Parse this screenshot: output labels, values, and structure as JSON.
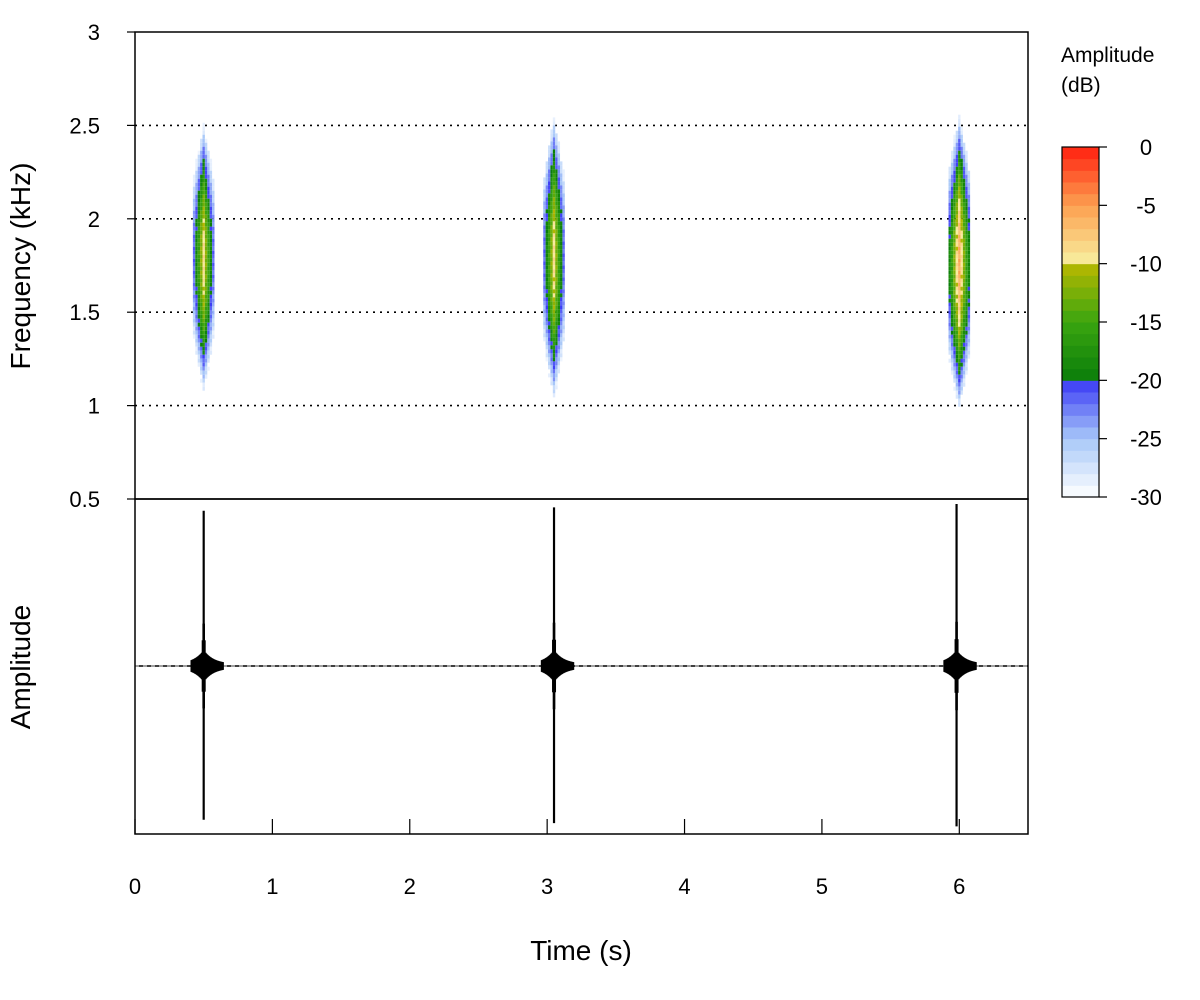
{
  "chart_data": [
    {
      "type": "heatmap",
      "subtype": "spectrogram",
      "xlabel": "",
      "ylabel": "Frequency (kHz)",
      "xlim": [
        0,
        6.5
      ],
      "ylim": [
        0.5,
        3
      ],
      "yticks": [
        "0.5",
        "1",
        "1.5",
        "2",
        "2.5",
        "3"
      ],
      "grid_y": [
        1,
        1.5,
        2,
        2.5
      ],
      "grid_style": "dotted",
      "events": [
        {
          "t": 0.5,
          "fmin": 1.0,
          "fmax": 2.6,
          "peak_db": -8
        },
        {
          "t": 3.05,
          "fmin": 0.95,
          "fmax": 2.65,
          "peak_db": -8
        },
        {
          "t": 6.0,
          "fmin": 0.95,
          "fmax": 2.6,
          "peak_db": -5
        }
      ]
    },
    {
      "type": "line",
      "subtype": "oscillogram",
      "xlabel": "Time (s)",
      "ylabel": "Amplitude",
      "xlim": [
        0,
        6.5
      ],
      "xticks": [
        "0",
        "1",
        "2",
        "3",
        "4",
        "5",
        "6"
      ],
      "bursts": [
        {
          "t": 0.5,
          "peak": 0.93
        },
        {
          "t": 3.05,
          "peak": 0.95
        },
        {
          "t": 5.98,
          "peak": 0.97
        }
      ],
      "baseline": "dashed"
    }
  ],
  "colorbar": {
    "title_line1": "Amplitude",
    "title_line2": "(dB)",
    "ticks": [
      "0",
      "-5",
      "-10",
      "-15",
      "-20",
      "-25",
      "-30"
    ],
    "range": [
      -30,
      0
    ],
    "stops": [
      {
        "db": -30,
        "color": "#ffffff"
      },
      {
        "db": -25,
        "color": "#a8c8f8"
      },
      {
        "db": -20.01,
        "color": "#3a3af5"
      },
      {
        "db": -20,
        "color": "#0a7d0a"
      },
      {
        "db": -15,
        "color": "#3aa510"
      },
      {
        "db": -10.01,
        "color": "#b8b800"
      },
      {
        "db": -10,
        "color": "#f8f0a0"
      },
      {
        "db": -5,
        "color": "#fca050"
      },
      {
        "db": 0,
        "color": "#ff2010"
      }
    ]
  }
}
